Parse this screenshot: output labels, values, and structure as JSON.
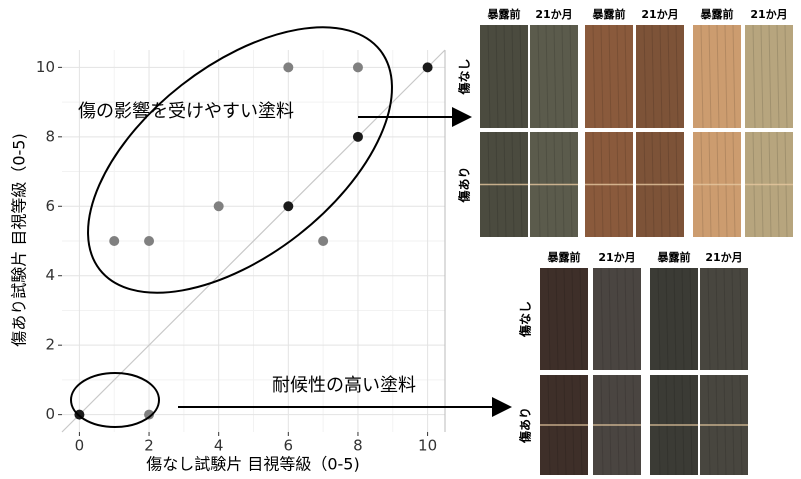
{
  "chart_data": {
    "type": "scatter",
    "xlabel": "傷なし試験片 目視等級（0-5)",
    "ylabel": "傷あり試験片 目視等級（0-5)",
    "xlim": [
      -0.5,
      10.5
    ],
    "ylim": [
      -0.5,
      10.5
    ],
    "xticks": [
      0,
      2,
      4,
      6,
      8,
      10
    ],
    "yticks": [
      0,
      2,
      4,
      6,
      8,
      10
    ],
    "grid": true,
    "diagonal": true,
    "series": [
      {
        "color": "#808080",
        "x": [
          1,
          2,
          4,
          6,
          7,
          8,
          2
        ],
        "values": [
          5,
          5,
          6,
          10,
          5,
          10,
          0
        ]
      },
      {
        "color": "#1a1a1a",
        "x": [
          0,
          6,
          8,
          10
        ],
        "values": [
          0,
          6,
          8,
          10
        ]
      }
    ],
    "annotations": [
      "傷の影響を受けやすい塗料",
      "耐候性の高い塗料"
    ]
  },
  "photos": [
    {
      "columns": [
        "暴露前",
        "21か月",
        "暴露前",
        "21か月",
        "暴露前",
        "21か月"
      ],
      "rows": [
        "傷なし",
        "傷あり"
      ]
    },
    {
      "columns": [
        "暴露前",
        "21か月",
        "暴露前",
        "21か月"
      ],
      "rows": [
        "傷なし",
        "傷あり"
      ]
    }
  ]
}
